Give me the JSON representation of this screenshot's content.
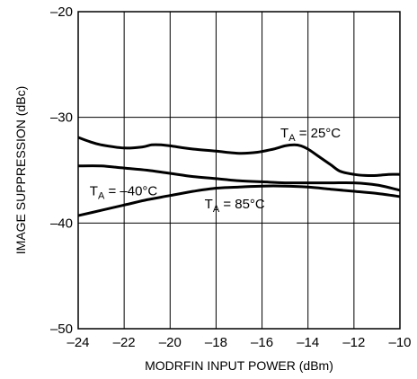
{
  "chart_data": {
    "type": "line",
    "title": "",
    "xlabel": "MODRFIN INPUT POWER (dBm)",
    "ylabel": "IMAGE SUPPRESSION (dBc)",
    "xlim": [
      -24,
      -10
    ],
    "ylim": [
      -50,
      -20
    ],
    "x_ticks": [
      -24,
      -22,
      -20,
      -18,
      -16,
      -14,
      -12,
      -10
    ],
    "x_tick_labels": [
      "–24",
      "–22",
      "–20",
      "–18",
      "–16",
      "–14",
      "–12",
      "–10"
    ],
    "y_ticks": [
      -50,
      -40,
      -30,
      -20
    ],
    "y_tick_labels": [
      "–50",
      "–40",
      "–30",
      "–20"
    ],
    "grid": true,
    "series": [
      {
        "temp": "25°C",
        "x": [
          -24,
          -23.5,
          -23,
          -22,
          -21.2,
          -20.8,
          -20.4,
          -20,
          -19,
          -18,
          -17,
          -16.2,
          -15.5,
          -15,
          -14.6,
          -14.3,
          -14,
          -13.6,
          -13,
          -12.6,
          -12,
          -11.5,
          -11,
          -10.5,
          -10
        ],
        "y": [
          -31.9,
          -32.3,
          -32.6,
          -32.9,
          -32.8,
          -32.6,
          -32.6,
          -32.7,
          -33.0,
          -33.2,
          -33.4,
          -33.3,
          -33.0,
          -32.7,
          -32.6,
          -32.7,
          -33.0,
          -33.6,
          -34.5,
          -35.1,
          -35.4,
          -35.5,
          -35.5,
          -35.4,
          -35.4
        ]
      },
      {
        "temp": "–40°C",
        "x": [
          -24,
          -23,
          -22,
          -21,
          -20,
          -19,
          -18,
          -17,
          -16,
          -15,
          -14,
          -13,
          -12,
          -11,
          -10
        ],
        "y": [
          -34.6,
          -34.6,
          -34.8,
          -35.0,
          -35.3,
          -35.6,
          -35.8,
          -36.0,
          -36.1,
          -36.2,
          -36.2,
          -36.2,
          -36.2,
          -36.4,
          -36.9
        ]
      },
      {
        "temp": "85°C",
        "x": [
          -24,
          -23,
          -22,
          -21,
          -20,
          -19,
          -18,
          -17,
          -16,
          -15,
          -14,
          -13,
          -12,
          -11,
          -10
        ],
        "y": [
          -39.3,
          -38.8,
          -38.3,
          -37.8,
          -37.4,
          -37.0,
          -36.7,
          -36.6,
          -36.5,
          -36.5,
          -36.6,
          -36.8,
          -37.0,
          -37.2,
          -37.5
        ]
      }
    ],
    "annotations": [
      {
        "prefix": "T",
        "sub": "A",
        "suffix": " = 25°C",
        "x": -15.2,
        "y": -31.9
      },
      {
        "prefix": "T",
        "sub": "A",
        "suffix": " = –40°C",
        "x": -23.5,
        "y": -37.4
      },
      {
        "prefix": "T",
        "sub": "A",
        "suffix": " = 85°C",
        "x": -18.5,
        "y": -38.6
      }
    ]
  }
}
